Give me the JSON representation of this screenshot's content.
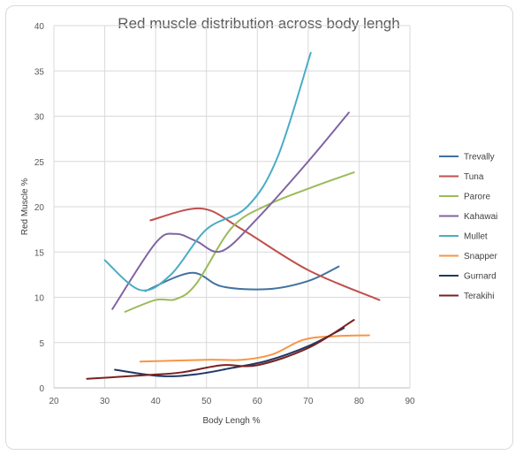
{
  "chart_data": {
    "type": "line",
    "title": "Red muscle distribution across body lengh",
    "xlabel": "Body Lengh %",
    "ylabel": "Red Muscle %",
    "xlim": [
      20,
      90
    ],
    "ylim": [
      0,
      40
    ],
    "x_ticks": [
      20,
      30,
      40,
      50,
      60,
      70,
      80,
      90
    ],
    "y_ticks": [
      0,
      5,
      10,
      15,
      20,
      25,
      30,
      35,
      40
    ],
    "grid": "vertical and horizontal major gridlines",
    "legend": "right",
    "smooth": true,
    "series": [
      {
        "name": "Trevally",
        "color": "#41729f",
        "x": [
          38,
          47,
          53,
          62,
          70,
          76
        ],
        "y": [
          10.7,
          12.7,
          11.2,
          10.9,
          11.8,
          13.4
        ]
      },
      {
        "name": "Tuna",
        "color": "#c0504d",
        "x": [
          39,
          49,
          57,
          70,
          84
        ],
        "y": [
          18.5,
          19.8,
          17.5,
          13.0,
          9.7
        ]
      },
      {
        "name": "Parore",
        "color": "#9bbb59",
        "x": [
          34,
          40,
          44,
          48,
          55,
          62,
          71,
          79
        ],
        "y": [
          8.4,
          9.7,
          9.8,
          11.5,
          17.7,
          20.2,
          22.2,
          23.8
        ]
      },
      {
        "name": "Kahawai",
        "color": "#8064a2",
        "x": [
          31.5,
          40,
          44,
          48,
          53,
          60,
          70,
          78
        ],
        "y": [
          8.7,
          16.0,
          17.0,
          16.2,
          15.1,
          18.7,
          25.0,
          30.4
        ]
      },
      {
        "name": "Mullet",
        "color": "#4bacc6",
        "x": [
          30,
          37,
          43,
          50,
          58,
          64,
          70.5
        ],
        "y": [
          14.1,
          10.8,
          12.5,
          17.5,
          20.0,
          25.5,
          37.0
        ]
      },
      {
        "name": "Snapper",
        "color": "#f79646",
        "x": [
          37,
          50,
          57,
          63,
          69,
          75,
          82
        ],
        "y": [
          2.9,
          3.1,
          3.1,
          3.7,
          5.3,
          5.7,
          5.8
        ]
      },
      {
        "name": "Gurnard",
        "color": "#1f3864",
        "x": [
          32,
          41,
          48,
          55,
          62,
          70,
          77
        ],
        "y": [
          2.0,
          1.3,
          1.5,
          2.2,
          3.0,
          4.6,
          6.6
        ]
      },
      {
        "name": "Terakihi",
        "color": "#7b2020",
        "x": [
          26.5,
          38,
          45,
          53,
          60,
          70,
          79
        ],
        "y": [
          1.0,
          1.4,
          1.7,
          2.5,
          2.5,
          4.4,
          7.5
        ]
      }
    ]
  }
}
